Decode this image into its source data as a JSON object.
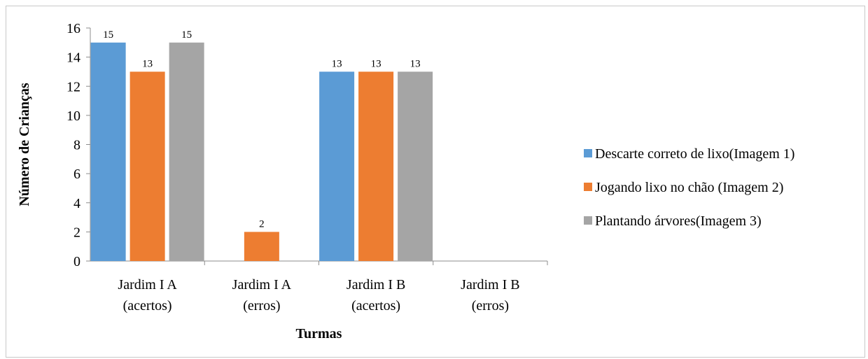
{
  "chart_data": {
    "type": "bar",
    "title": "",
    "xlabel": "Turmas",
    "ylabel": "Número de Crianças",
    "ylim": [
      0,
      16
    ],
    "yticks": [
      0,
      2,
      4,
      6,
      8,
      10,
      12,
      14,
      16
    ],
    "grid": false,
    "legend_position": "right",
    "categories": [
      [
        "Jardim I A",
        "(acertos)"
      ],
      [
        "Jardim I A",
        "(erros)"
      ],
      [
        "Jardim I B",
        "(acertos)"
      ],
      [
        "Jardim I B",
        "(erros)"
      ]
    ],
    "series": [
      {
        "name": "Descarte correto de lixo(Imagem 1)",
        "color": "#5b9bd5",
        "values": [
          15,
          0,
          13,
          0
        ],
        "labels": [
          "15",
          "",
          "13",
          ""
        ]
      },
      {
        "name": "Jogando lixo no chão (Imagem 2)",
        "color": "#ed7d31",
        "values": [
          13,
          2,
          13,
          0
        ],
        "labels": [
          "13",
          "2",
          "13",
          ""
        ]
      },
      {
        "name": "Plantando árvores(Imagem 3)",
        "color": "#a5a5a5",
        "values": [
          15,
          0,
          13,
          0
        ],
        "labels": [
          "15",
          "",
          "13",
          ""
        ]
      }
    ]
  }
}
